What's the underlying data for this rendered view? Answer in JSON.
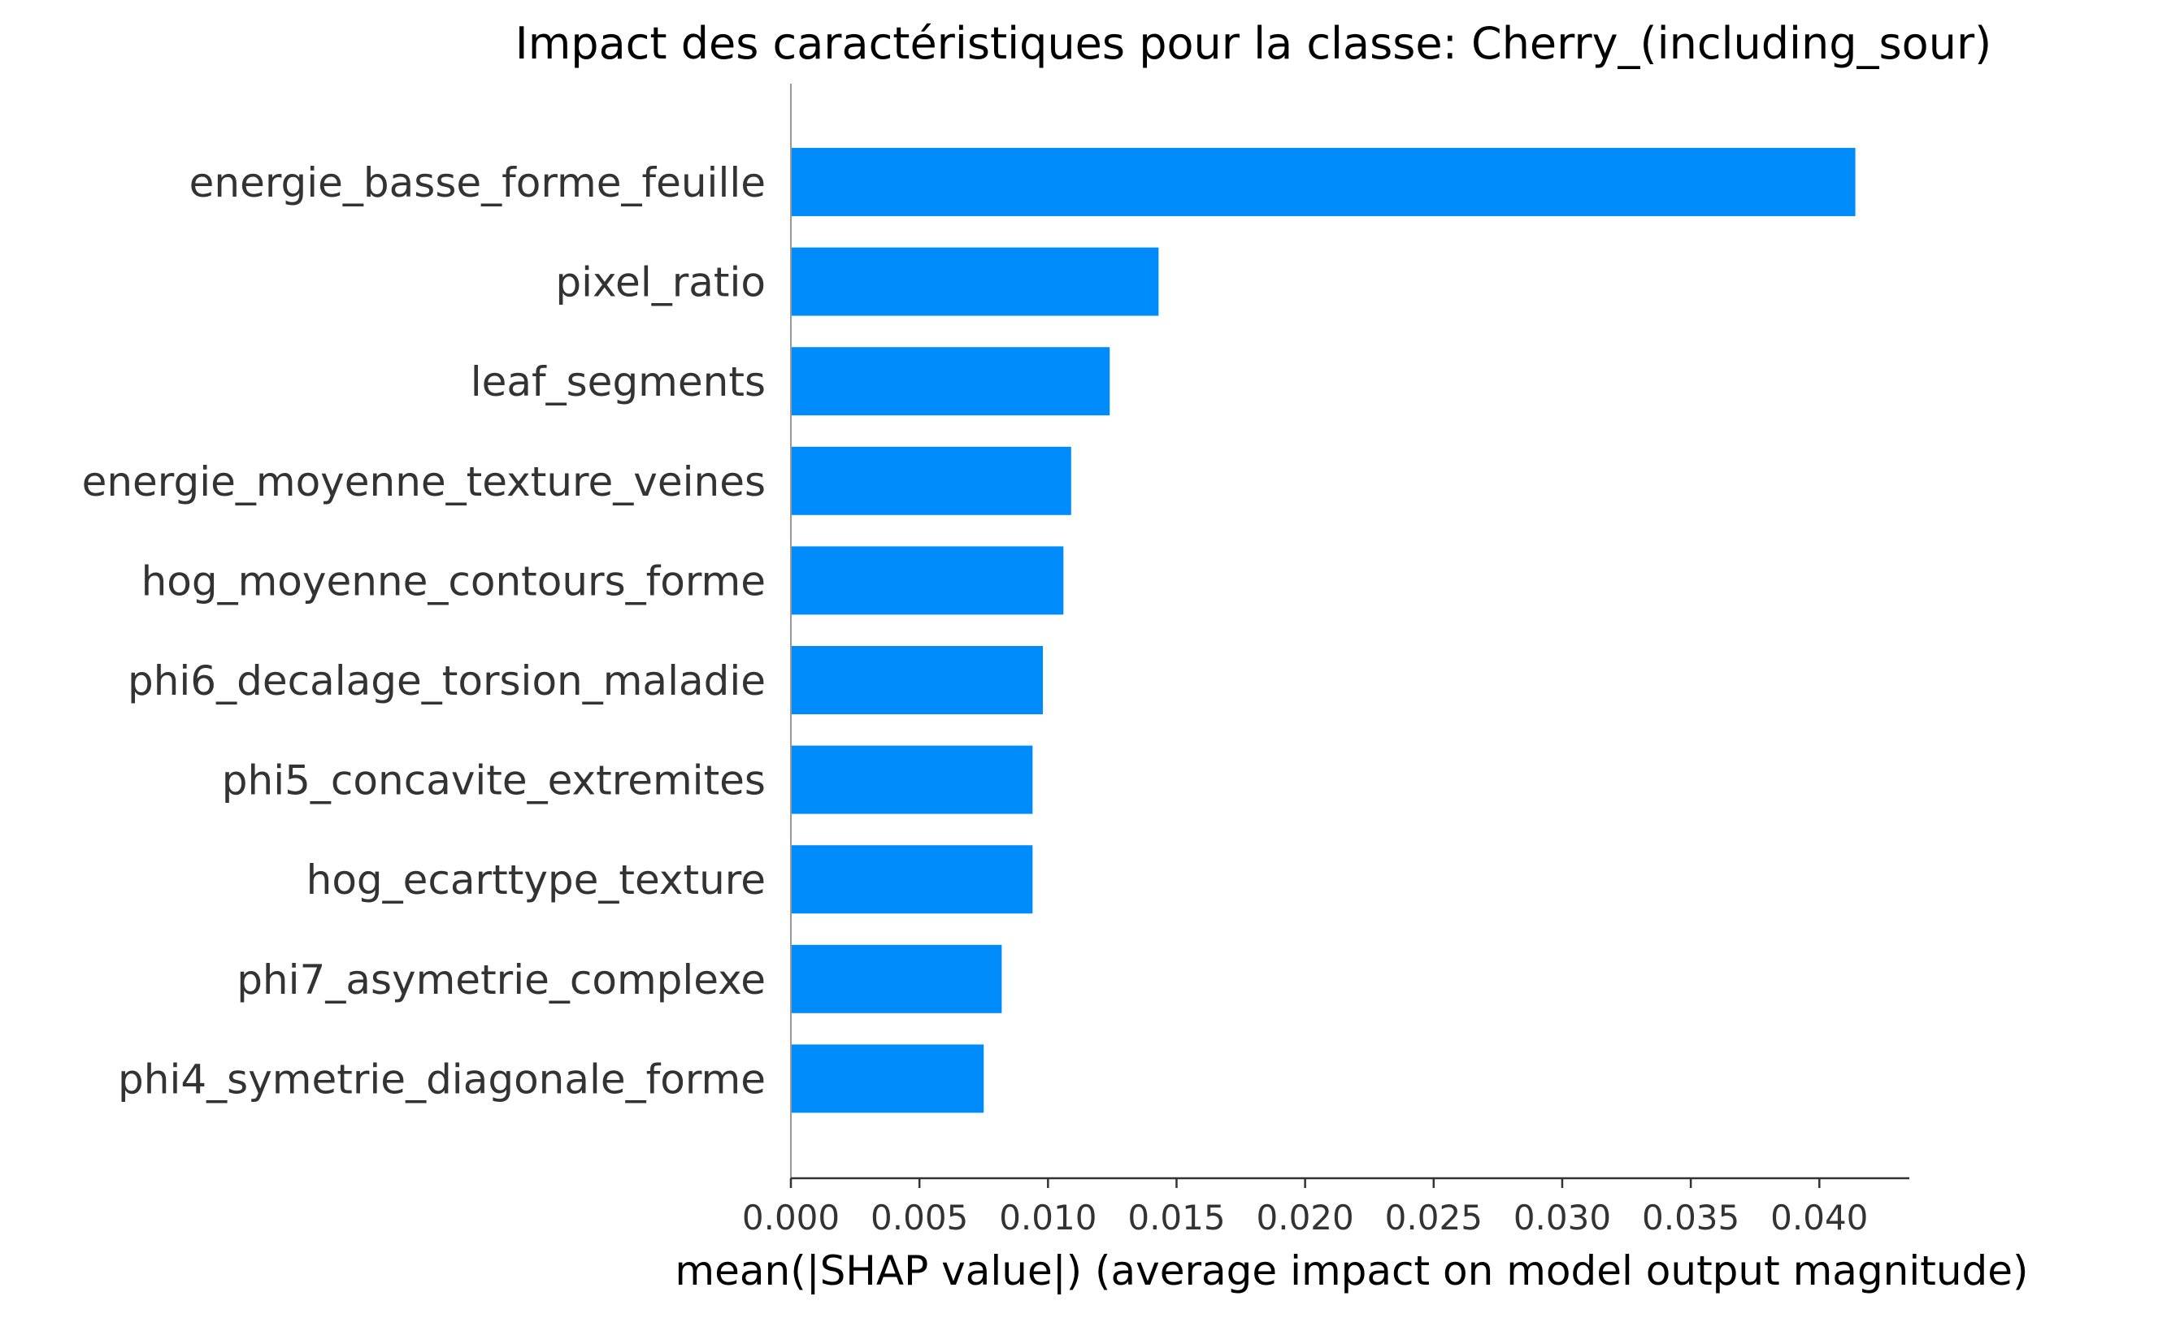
{
  "chart_data": {
    "type": "bar",
    "orientation": "horizontal",
    "title": "Impact des caractéristiques pour la classe: Cherry_(including_sour)",
    "xlabel": "mean(|SHAP value|) (average impact on model output magnitude)",
    "ylabel": "",
    "categories": [
      "energie_basse_forme_feuille",
      "pixel_ratio",
      "leaf_segments",
      "energie_moyenne_texture_veines",
      "hog_moyenne_contours_forme",
      "phi6_decalage_torsion_maladie",
      "phi5_concavite_extremites",
      "hog_ecarttype_texture",
      "phi7_asymetrie_complexe",
      "phi4_symetrie_diagonale_forme"
    ],
    "values": [
      0.0414,
      0.0143,
      0.0124,
      0.0109,
      0.0106,
      0.0098,
      0.0094,
      0.0094,
      0.0082,
      0.0075
    ],
    "xlim": [
      0,
      0.0435
    ],
    "xticks": [
      "0.000",
      "0.005",
      "0.010",
      "0.015",
      "0.020",
      "0.025",
      "0.030",
      "0.035",
      "0.040"
    ],
    "grid": false,
    "legend": "none",
    "bar_color": "#008bfb",
    "text_color": "#333333",
    "axis_color": "#999999"
  }
}
